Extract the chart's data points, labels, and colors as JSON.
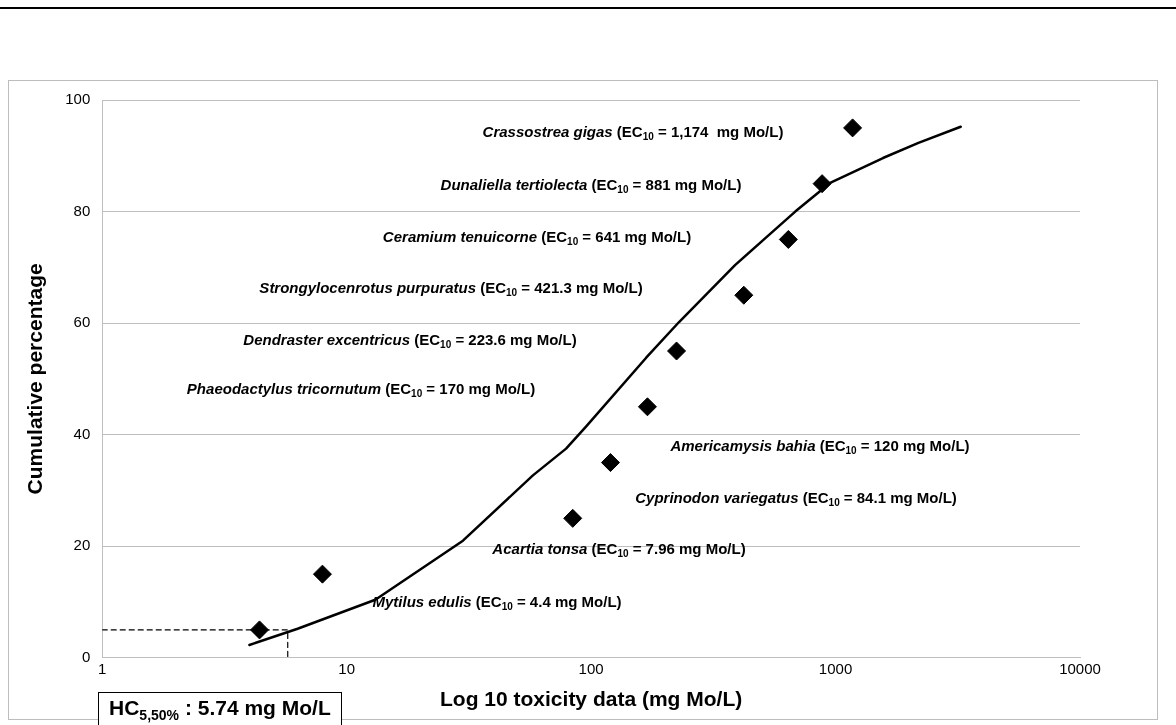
{
  "chart_data": {
    "type": "scatter",
    "xlabel": "Log 10 toxicity data (mg Mo/L)",
    "ylabel": "Cumulative percentage",
    "log": "x",
    "xlim": [
      1,
      10000
    ],
    "xticks": [
      1,
      10,
      100,
      1000,
      10000
    ],
    "ylim": [
      0,
      100
    ],
    "yticks": [
      0,
      20,
      40,
      60,
      80,
      100
    ],
    "grid": "y",
    "legend": false,
    "marker": "diamond",
    "series": [
      {
        "color": "#000000",
        "x": [
          4.4,
          7.96,
          84.1,
          120,
          170,
          223.6,
          421.3,
          641,
          881,
          1174
        ],
        "values": [
          5,
          15,
          25,
          35,
          45,
          55,
          65,
          75,
          85,
          95
        ]
      },
      {
        "type": "line",
        "color": "#000000",
        "marker": "none",
        "x": [
          4,
          6.3,
          13.1,
          29.9,
          57.8,
          79,
          95.5,
          168,
          229,
          388,
          684,
          955,
          1563,
          2183,
          3250
        ],
        "values": [
          2.3,
          5.2,
          10.4,
          21,
          32.7,
          37.5,
          41.5,
          53.8,
          60.2,
          70.4,
          80,
          85.2,
          89.6,
          92.3,
          95.2
        ]
      },
      {
        "type": "line",
        "color": "#000000",
        "marker": "none",
        "line_style": "dashed",
        "x": [
          1,
          5.74,
          5.74
        ],
        "values": [
          5,
          5,
          0
        ]
      }
    ],
    "annotations": [
      "Mytilus edulis (EC$_{10}$ = 4.4 mg Mo/L)",
      "Acartia tonsa (EC$_{10}$ = 7.96 mg Mo/L)",
      "Cyprinodon variegatus (EC$_{10}$ = 84.1 mg Mo/L)",
      "Americamysis bahia (EC$_{10}$ = 120 mg Mo/L)",
      "Phaeodactylus tricornutum (EC$_{10}$ = 170 mg Mo/L)",
      "Dendraster excentricus (EC$_{10}$ = 223.6 mg Mo/L)",
      "Strongylocenrotus purpuratus (EC$_{10}$ = 421.3 mg Mo/L)",
      "Ceramium tenuicorne (EC$_{10}$ = 641 mg Mo/L)",
      "Dunaliella tertiolecta (EC$_{10}$ = 881 mg Mo/L)",
      "Crassostrea gigas (EC$_{10}$ = 1,174  mg Mo/L)",
      "HC$_{5,50%}$ : 5.74 mg Mo/L"
    ]
  }
}
